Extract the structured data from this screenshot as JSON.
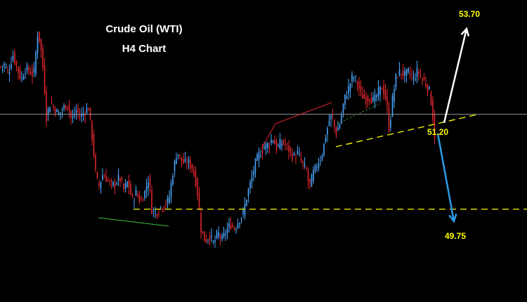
{
  "chart_data": {
    "type": "candlestick",
    "title": "Crude Oil (WTI)",
    "subtitle": "H4 Chart",
    "ylim": [
      47.6,
      54.6
    ],
    "grid": false,
    "colors": {
      "background": "#000000",
      "bull_candle": "#4aa8ff",
      "bear_candle": "#e0262e",
      "support_line": "#ffff00",
      "current_price_line": "#9a9aa0",
      "up_arrow": "#ffffff",
      "down_arrow": "#2b9be6",
      "label_text": "#ffff00",
      "title_text": "#ffffff"
    },
    "price_path": [
      [
        0,
        53.05
      ],
      [
        6,
        53.1
      ],
      [
        12,
        52.9
      ],
      [
        18,
        53.35
      ],
      [
        24,
        53.05
      ],
      [
        30,
        52.75
      ],
      [
        36,
        53.0
      ],
      [
        42,
        52.95
      ],
      [
        48,
        52.85
      ],
      [
        54,
        53.9
      ],
      [
        58,
        53.5
      ],
      [
        62,
        52.9
      ],
      [
        66,
        51.9
      ],
      [
        72,
        52.25
      ],
      [
        78,
        52.05
      ],
      [
        84,
        51.95
      ],
      [
        90,
        52.1
      ],
      [
        96,
        52.2
      ],
      [
        102,
        51.8
      ],
      [
        108,
        52.05
      ],
      [
        114,
        51.9
      ],
      [
        120,
        52.0
      ],
      [
        126,
        52.1
      ],
      [
        132,
        51.3
      ],
      [
        136,
        50.6
      ],
      [
        140,
        50.25
      ],
      [
        146,
        50.55
      ],
      [
        152,
        50.45
      ],
      [
        158,
        50.3
      ],
      [
        164,
        50.35
      ],
      [
        170,
        50.5
      ],
      [
        176,
        50.2
      ],
      [
        182,
        50.4
      ],
      [
        188,
        49.95
      ],
      [
        194,
        50.15
      ],
      [
        200,
        49.9
      ],
      [
        206,
        50.15
      ],
      [
        212,
        50.5
      ],
      [
        216,
        49.75
      ],
      [
        222,
        49.65
      ],
      [
        228,
        49.8
      ],
      [
        234,
        49.85
      ],
      [
        240,
        49.95
      ],
      [
        246,
        50.6
      ],
      [
        252,
        51.1
      ],
      [
        256,
        50.95
      ],
      [
        262,
        50.8
      ],
      [
        268,
        50.85
      ],
      [
        274,
        50.7
      ],
      [
        280,
        50.3
      ],
      [
        286,
        49.3
      ],
      [
        292,
        49.0
      ],
      [
        298,
        49.15
      ],
      [
        304,
        48.95
      ],
      [
        310,
        49.2
      ],
      [
        316,
        49.05
      ],
      [
        322,
        49.25
      ],
      [
        328,
        49.4
      ],
      [
        334,
        49.3
      ],
      [
        340,
        49.5
      ],
      [
        346,
        49.65
      ],
      [
        352,
        50.1
      ],
      [
        358,
        50.45
      ],
      [
        364,
        50.85
      ],
      [
        370,
        51.05
      ],
      [
        376,
        51.2
      ],
      [
        382,
        51.25
      ],
      [
        388,
        51.4
      ],
      [
        394,
        51.15
      ],
      [
        400,
        51.3
      ],
      [
        406,
        51.25
      ],
      [
        412,
        51.1
      ],
      [
        418,
        50.95
      ],
      [
        424,
        51.05
      ],
      [
        430,
        50.8
      ],
      [
        436,
        50.65
      ],
      [
        440,
        50.25
      ],
      [
        446,
        50.6
      ],
      [
        452,
        50.8
      ],
      [
        458,
        51.0
      ],
      [
        464,
        51.5
      ],
      [
        470,
        51.9
      ],
      [
        474,
        51.85
      ],
      [
        478,
        51.5
      ],
      [
        484,
        51.75
      ],
      [
        490,
        52.3
      ],
      [
        496,
        52.55
      ],
      [
        502,
        52.85
      ],
      [
        508,
        52.7
      ],
      [
        514,
        52.4
      ],
      [
        520,
        52.3
      ],
      [
        526,
        52.35
      ],
      [
        532,
        52.25
      ],
      [
        538,
        52.45
      ],
      [
        544,
        52.6
      ],
      [
        550,
        52.25
      ],
      [
        554,
        51.55
      ],
      [
        558,
        52.25
      ],
      [
        564,
        52.85
      ],
      [
        570,
        52.95
      ],
      [
        576,
        52.85
      ],
      [
        582,
        52.95
      ],
      [
        588,
        52.75
      ],
      [
        594,
        52.95
      ],
      [
        600,
        52.8
      ],
      [
        606,
        52.65
      ],
      [
        612,
        52.45
      ],
      [
        616,
        51.9
      ],
      [
        620,
        51.2
      ]
    ],
    "current_price": 51.95,
    "support_level": 49.75,
    "trendline": {
      "from": [
        478,
        51.2
      ],
      "to": [
        680,
        51.95
      ]
    },
    "annotations": [
      {
        "label": "53.70",
        "direction": "up",
        "price": 53.7
      },
      {
        "label": "51.20",
        "direction": "pivot",
        "price": 51.2
      },
      {
        "label": "49.75",
        "direction": "down",
        "price": 49.75
      }
    ]
  }
}
